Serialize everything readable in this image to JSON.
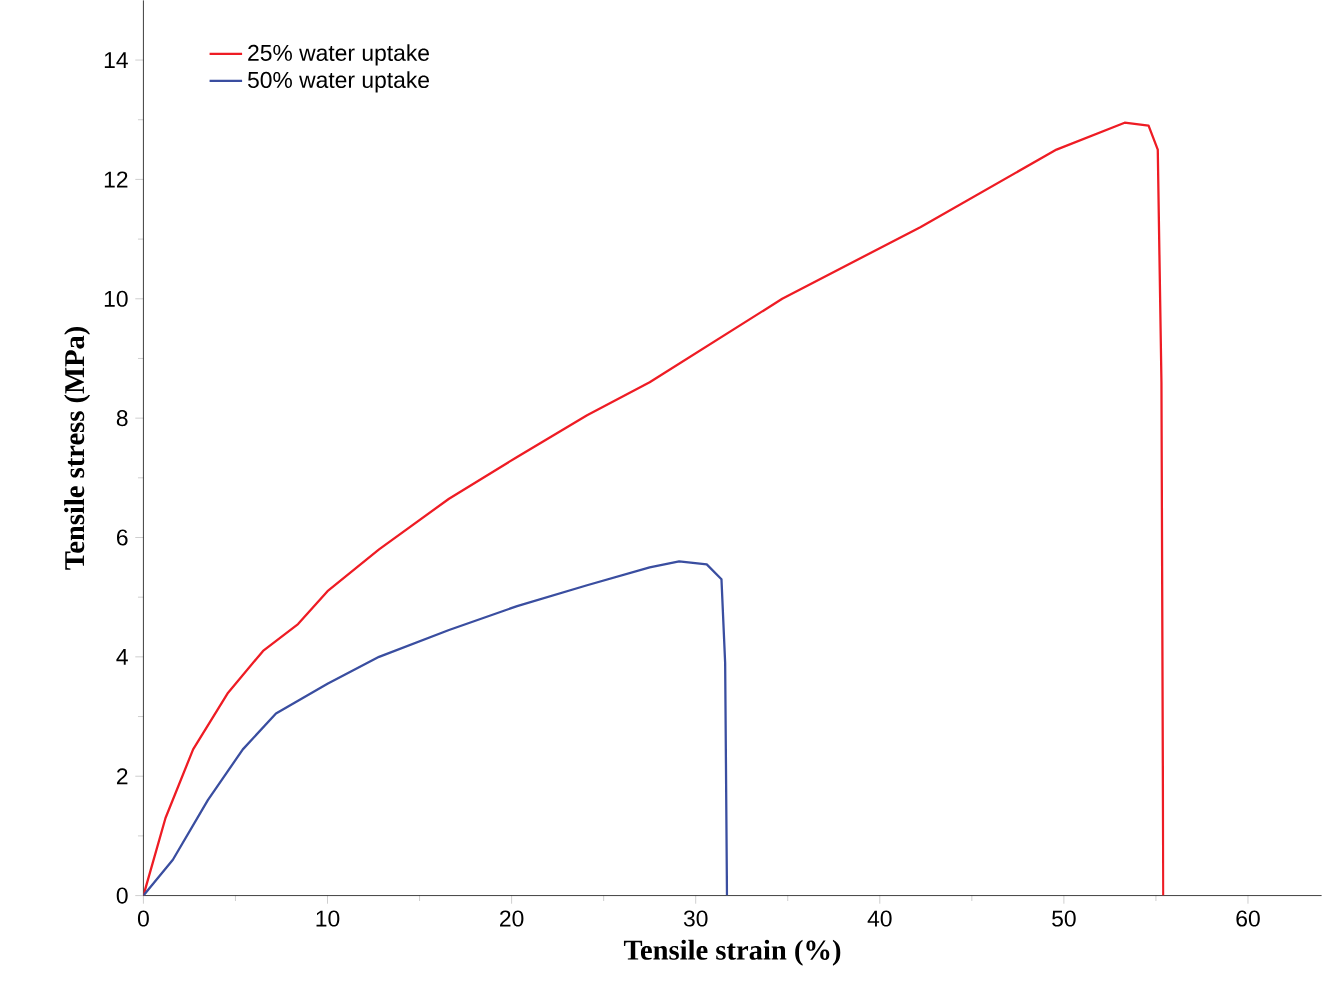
{
  "chart_data": {
    "type": "line",
    "xlabel": "Tensile strain (%)",
    "ylabel": "Tensile stress (MPa)",
    "xlim": [
      0,
      64
    ],
    "ylim": [
      0,
      15
    ],
    "xticks": [
      0,
      10,
      20,
      30,
      40,
      50,
      60
    ],
    "yticks": [
      0,
      2,
      4,
      6,
      8,
      10,
      12,
      14
    ],
    "legend": "top left",
    "grid": false,
    "marker": "none",
    "line_style": "solid",
    "series": [
      {
        "name": "25% water uptake",
        "color": "#ee1c24",
        "x": [
          0,
          1.2,
          2.7,
          4.6,
          6.5,
          8.4,
          10,
          12.8,
          16.6,
          20.3,
          24.1,
          27.5,
          34.7,
          42.2,
          49.6,
          53.3,
          54.6,
          55.1,
          55.3,
          55.4
        ],
        "values": [
          0,
          1.3,
          2.45,
          3.4,
          4.1,
          4.55,
          5.1,
          5.8,
          6.65,
          7.35,
          8.05,
          8.6,
          10,
          11.2,
          12.5,
          12.95,
          12.9,
          12.5,
          8.6,
          0
        ]
      },
      {
        "name": "50% water uptake",
        "color": "#3a4ea0",
        "x": [
          0,
          1.6,
          3.5,
          5.4,
          7.2,
          10,
          12.8,
          16.6,
          20.3,
          24.1,
          27.5,
          29.1,
          30.6,
          31.4,
          31.6,
          31.7
        ],
        "values": [
          0,
          0.6,
          1.6,
          2.45,
          3.05,
          3.55,
          4,
          4.45,
          4.85,
          5.2,
          5.5,
          5.6,
          5.55,
          5.3,
          3.9,
          0
        ]
      }
    ]
  }
}
